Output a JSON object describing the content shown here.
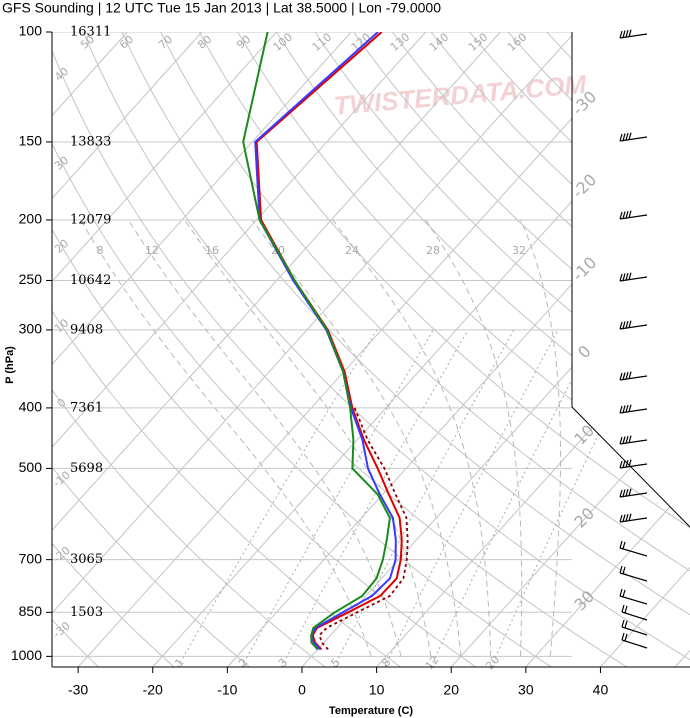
{
  "chart_data": {
    "type": "skewt",
    "title": "GFS Sounding | 12 UTC Tue 15 Jan 2013 | Lat 38.5000 | Lon -79.0000",
    "xlabel": "Temperature (C)",
    "ylabel": "P (hPa)",
    "watermark": "TWISTERDATA.COM",
    "pressure": [
      100,
      150,
      200,
      250,
      300,
      350,
      400,
      450,
      500,
      550,
      600,
      650,
      700,
      750,
      800,
      850,
      900,
      925,
      950,
      975
    ],
    "series": [
      {
        "color": "#e00000",
        "style": "solid",
        "values": [
          -65.9,
          -69.4,
          -59.4,
          -47.6,
          -37.2,
          -29.9,
          -24.5,
          -19.1,
          -13.8,
          -9.2,
          -4.9,
          -2.0,
          0.3,
          2.0,
          1.9,
          -0.4,
          -2.7,
          -2.4,
          -1.2,
          0.5
        ]
      },
      {
        "color": "#3a3aff",
        "style": "solid",
        "values": [
          -66.4,
          -69.6,
          -59.6,
          -47.8,
          -37.4,
          -30.1,
          -24.7,
          -19.3,
          -15.1,
          -10.4,
          -5.8,
          -2.8,
          -0.4,
          1.1,
          0.8,
          -1.1,
          -2.9,
          -2.6,
          -1.4,
          0.3
        ]
      },
      {
        "color": "#1a8a1a",
        "style": "solid",
        "values": [
          -81.2,
          -71.2,
          -59.6,
          -47.6,
          -37.3,
          -30.1,
          -24.8,
          -20.5,
          -17.2,
          -10.7,
          -6.2,
          -4.0,
          -2.1,
          -0.7,
          -0.5,
          -2.2,
          -3.2,
          -2.6,
          -1.7,
          0.0
        ]
      },
      {
        "color": "#8b0000",
        "style": "dashed",
        "values": [
          null,
          null,
          null,
          null,
          null,
          null,
          -24.2,
          -18.6,
          -12.9,
          -8.3,
          -4.0,
          -1.2,
          1.1,
          2.9,
          3.2,
          0.8,
          -1.4,
          -1.5,
          -0.3,
          1.4
        ]
      }
    ],
    "xlim": [
      -33.5,
      52
    ],
    "xticks": [
      -30,
      -20,
      -10,
      0,
      10,
      20,
      30,
      40
    ],
    "ylim": [
      1040,
      100
    ],
    "yticks": [
      100,
      150,
      200,
      250,
      300,
      400,
      500,
      700,
      850,
      1000
    ],
    "log_y": true,
    "heights": [
      16311,
      13833,
      12079,
      10642,
      9408,
      7361,
      5698,
      3065,
      1503,
      null
    ],
    "isotherm_labels": [
      -30,
      -20,
      -10,
      0,
      10,
      20,
      30
    ],
    "dry_adiabat_labels": [
      -30,
      -20,
      -10,
      0,
      10,
      20,
      30,
      40,
      50,
      60,
      70,
      80,
      90,
      100,
      110,
      120,
      130,
      140,
      150,
      160
    ],
    "moist_adiabat_labels": [
      8,
      12,
      16,
      20,
      24,
      28,
      32
    ],
    "mixing_ratio_labels": [
      1,
      2,
      3,
      5,
      8,
      12,
      20
    ],
    "grid": true
  }
}
